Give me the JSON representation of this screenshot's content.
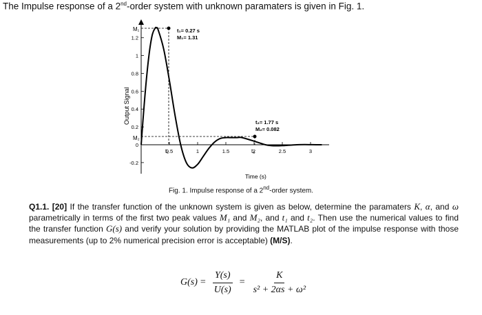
{
  "header": {
    "title_pre": "The Impulse response of a 2",
    "title_sup": "nd",
    "title_post": "-order system with unknown paramaters is given in Fig. 1."
  },
  "figure": {
    "ylabel": "Output Signal",
    "xlabel": "Time (s)",
    "y_ticks": [
      "1.2",
      "1",
      "0.8",
      "0.6",
      "0.4",
      "0.2",
      "0",
      "-0.2"
    ],
    "x_ticks": [
      "0.5",
      "1",
      "1.5",
      "2",
      "2.5",
      "3"
    ],
    "marker_M1": "M₁",
    "marker_M2": "M₂",
    "marker_t1": "t₁",
    "marker_t2": "t₂",
    "annot_peak1_t": "t₁= 0.27 s",
    "annot_peak1_m": "M₁= 1.31",
    "annot_peak2_t": "t₂= 1.77 s",
    "annot_peak2_m": "M₂= 0.082",
    "caption_pre": "Fig. 1. Impulse response of a 2",
    "caption_sup": "nd",
    "caption_post": "-order system."
  },
  "chart_data": {
    "type": "line",
    "title": "",
    "xlabel": "Time (s)",
    "ylabel": "Output Signal",
    "xlim": [
      0,
      3.3
    ],
    "ylim": [
      -0.3,
      1.4
    ],
    "x_tick_values": [
      0.5,
      1,
      1.5,
      2,
      2.5,
      3
    ],
    "y_tick_values": [
      1.2,
      1,
      0.8,
      0.6,
      0.4,
      0.2,
      0,
      -0.2
    ],
    "series": [
      {
        "x": [
          0,
          0.05,
          0.1,
          0.15,
          0.2,
          0.25,
          0.27,
          0.3,
          0.4,
          0.5,
          0.6,
          0.7,
          0.8,
          0.9,
          1.0,
          1.1,
          1.2,
          1.3,
          1.4,
          1.5,
          1.6,
          1.7,
          1.77,
          1.9,
          2.0,
          2.1,
          2.2,
          2.3,
          2.4,
          2.5,
          2.6,
          2.7,
          2.8,
          2.9,
          3.0,
          3.1,
          3.2
        ],
        "y": [
          0,
          0.42,
          0.78,
          1.06,
          1.24,
          1.31,
          1.31,
          1.29,
          1.07,
          0.72,
          0.33,
          0.0,
          -0.2,
          -0.26,
          -0.22,
          -0.13,
          -0.04,
          0.03,
          0.07,
          0.08,
          0.08,
          0.08,
          0.082,
          0.06,
          0.04,
          0.02,
          0.0,
          -0.01,
          -0.012,
          -0.01,
          -0.006,
          -0.002,
          0.001,
          0.002,
          0.001,
          0.0,
          0.0
        ]
      }
    ],
    "annotations": [
      {
        "x": 0.27,
        "y": 1.31,
        "text": "t₁= 0.27 s, M₁= 1.31"
      },
      {
        "x": 1.77,
        "y": 0.082,
        "text": "t₂= 1.77 s, M₂= 0.082"
      }
    ]
  },
  "question": {
    "label": "Q1.1. [20]",
    "text_1": " If the transfer function of the unknown system is given as below, determine the paramaters ",
    "K": "K",
    "comma": ", ",
    "alpha": "α",
    "text_2": ", and ",
    "omega": "ω",
    "text_3": " parametrically in terms of the first two peak values ",
    "M1": "M₁",
    "and1": " and ",
    "M2": "M₂",
    "text_4": ", and ",
    "t1": "t₁",
    "and2": " and ",
    "t2": "t₂",
    "text_5": ". Then use the numerical values to find the transfer function ",
    "Gs": "G(s)",
    "text_6": " and verify your solution by providing the MATLAB plot of the impulse response with those measurements (up to 2% numerical precision error is acceptable) ",
    "tag": "(M/S)",
    "end": "."
  },
  "equation": {
    "lhs": "G(s)",
    "eq1": "=",
    "num1": "Y(s)",
    "den1": "U(s)",
    "eq2": "=",
    "num2": "K",
    "den2": "s² + 2αs + ω²"
  }
}
